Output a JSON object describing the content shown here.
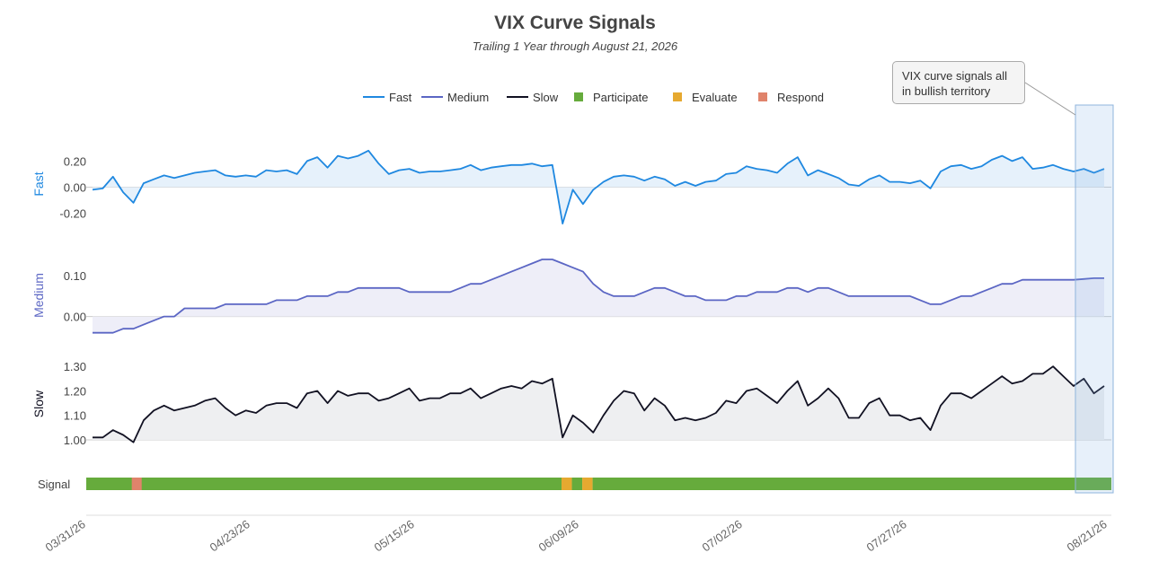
{
  "chart_data": {
    "type": "line",
    "title": "VIX Curve Signals",
    "subtitle": "Trailing 1 Year through August 21, 2026",
    "x_tick_labels": [
      "03/31/26",
      "04/23/26",
      "05/15/26",
      "06/09/26",
      "07/02/26",
      "07/27/26",
      "08/21/26"
    ],
    "legend": [
      {
        "name": "Fast",
        "kind": "line",
        "color": "#1f88e0"
      },
      {
        "name": "Medium",
        "kind": "line",
        "color": "#5b66c4"
      },
      {
        "name": "Slow",
        "kind": "line",
        "color": "#111122"
      },
      {
        "name": "Participate",
        "kind": "square",
        "color": "#66ab3c"
      },
      {
        "name": "Evaluate",
        "kind": "square",
        "color": "#e6a930"
      },
      {
        "name": "Respond",
        "kind": "square",
        "color": "#e0836b"
      }
    ],
    "annotation": "VIX curve signals all in bullish territory",
    "panels": [
      {
        "name": "Fast",
        "color": "#1f88e0",
        "fill": "#e6f1fb",
        "ylim": [
          -0.3,
          0.32
        ],
        "ticks": [
          "0.20",
          "0.00",
          "-0.20"
        ],
        "tick_values": [
          0.2,
          0,
          -0.2
        ],
        "values": [
          -0.02,
          -0.01,
          0.08,
          -0.04,
          -0.12,
          0.03,
          0.06,
          0.09,
          0.07,
          0.09,
          0.11,
          0.12,
          0.13,
          0.09,
          0.08,
          0.09,
          0.08,
          0.13,
          0.12,
          0.13,
          0.1,
          0.2,
          0.23,
          0.15,
          0.24,
          0.22,
          0.24,
          0.28,
          0.18,
          0.1,
          0.13,
          0.14,
          0.11,
          0.12,
          0.12,
          0.13,
          0.14,
          0.17,
          0.13,
          0.15,
          0.16,
          0.17,
          0.17,
          0.18,
          0.16,
          0.17,
          -0.28,
          -0.02,
          -0.13,
          -0.02,
          0.04,
          0.08,
          0.09,
          0.08,
          0.05,
          0.08,
          0.06,
          0.01,
          0.04,
          0.01,
          0.04,
          0.05,
          0.1,
          0.11,
          0.16,
          0.14,
          0.13,
          0.11,
          0.18,
          0.23,
          0.09,
          0.13,
          0.1,
          0.07,
          0.02,
          0.01,
          0.06,
          0.09,
          0.04,
          0.04,
          0.03,
          0.05,
          -0.01,
          0.12,
          0.16,
          0.17,
          0.14,
          0.16,
          0.21,
          0.24,
          0.2,
          0.23,
          0.14,
          0.15,
          0.17,
          0.14,
          0.12,
          0.14,
          0.11,
          0.14
        ]
      },
      {
        "name": "Medium",
        "color": "#5b66c4",
        "fill": "#eeeef8",
        "ylim": [
          -0.045,
          0.14
        ],
        "ticks": [
          "0.10",
          "0.00"
        ],
        "tick_values": [
          0.1,
          0
        ],
        "values": [
          -0.04,
          -0.04,
          -0.04,
          -0.03,
          -0.03,
          -0.02,
          -0.01,
          0,
          0,
          0.02,
          0.02,
          0.02,
          0.02,
          0.03,
          0.03,
          0.03,
          0.03,
          0.03,
          0.04,
          0.04,
          0.04,
          0.05,
          0.05,
          0.05,
          0.06,
          0.06,
          0.07,
          0.07,
          0.07,
          0.07,
          0.07,
          0.06,
          0.06,
          0.06,
          0.06,
          0.06,
          0.07,
          0.08,
          0.08,
          0.09,
          0.1,
          0.11,
          0.12,
          0.13,
          0.14,
          0.14,
          0.13,
          0.12,
          0.11,
          0.08,
          0.06,
          0.05,
          0.05,
          0.05,
          0.06,
          0.07,
          0.07,
          0.06,
          0.05,
          0.05,
          0.04,
          0.04,
          0.04,
          0.05,
          0.05,
          0.06,
          0.06,
          0.06,
          0.07,
          0.07,
          0.06,
          0.07,
          0.07,
          0.06,
          0.05,
          0.05,
          0.05,
          0.05,
          0.05,
          0.05,
          0.05,
          0.04,
          0.03,
          0.03,
          0.04,
          0.05,
          0.05,
          0.06,
          0.07,
          0.08,
          0.08,
          0.09,
          0.09,
          0.09,
          0.09,
          0.09,
          0.09,
          0.092,
          0.094,
          0.094
        ]
      },
      {
        "name": "Slow",
        "color": "#111122",
        "fill": "#eeeff1",
        "ylim": [
          1.0,
          1.33
        ],
        "ticks": [
          "1.30",
          "1.20",
          "1.10",
          "1.00"
        ],
        "tick_values": [
          1.3,
          1.2,
          1.1,
          1.0
        ],
        "values": [
          1.01,
          1.01,
          1.04,
          1.02,
          0.99,
          1.08,
          1.12,
          1.14,
          1.12,
          1.13,
          1.14,
          1.16,
          1.17,
          1.13,
          1.1,
          1.12,
          1.11,
          1.14,
          1.15,
          1.15,
          1.13,
          1.19,
          1.2,
          1.15,
          1.2,
          1.18,
          1.19,
          1.19,
          1.16,
          1.17,
          1.19,
          1.21,
          1.16,
          1.17,
          1.17,
          1.19,
          1.19,
          1.21,
          1.17,
          1.19,
          1.21,
          1.22,
          1.21,
          1.24,
          1.23,
          1.25,
          1.01,
          1.1,
          1.07,
          1.03,
          1.1,
          1.16,
          1.2,
          1.19,
          1.12,
          1.17,
          1.14,
          1.08,
          1.09,
          1.08,
          1.09,
          1.11,
          1.16,
          1.15,
          1.2,
          1.21,
          1.18,
          1.15,
          1.2,
          1.24,
          1.14,
          1.17,
          1.21,
          1.17,
          1.09,
          1.09,
          1.15,
          1.17,
          1.1,
          1.1,
          1.08,
          1.09,
          1.04,
          1.14,
          1.19,
          1.19,
          1.17,
          1.2,
          1.23,
          1.26,
          1.23,
          1.24,
          1.27,
          1.27,
          1.3,
          1.26,
          1.22,
          1.25,
          1.19,
          1.22
        ]
      }
    ],
    "signal": {
      "label": "Signal",
      "segments": [
        {
          "from": 0,
          "to": 45.9,
          "state": "Participate"
        },
        {
          "from": 45.9,
          "to": 46.9,
          "state": "Evaluate"
        },
        {
          "from": 46.9,
          "to": 47.9,
          "state": "Participate"
        },
        {
          "from": 47.9,
          "to": 48.9,
          "state": "Evaluate"
        },
        {
          "from": 48.9,
          "to": 99,
          "state": "Participate"
        }
      ],
      "respond_index": 4.4
    }
  }
}
